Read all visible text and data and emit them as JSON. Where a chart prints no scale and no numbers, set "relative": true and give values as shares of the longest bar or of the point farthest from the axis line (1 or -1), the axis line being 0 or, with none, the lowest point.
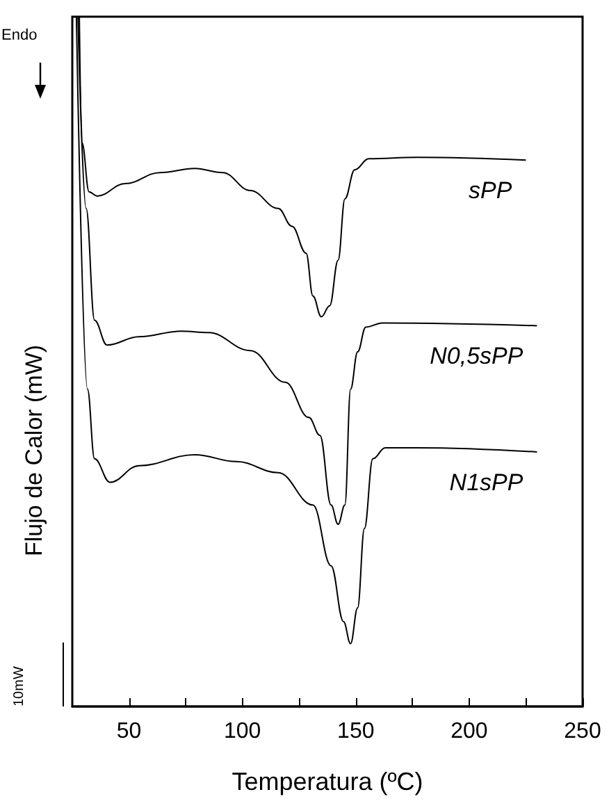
{
  "chart_data": {
    "type": "line",
    "xlabel": "Temperatura (ºC)",
    "ylabel": "Flujo de Calor (mW)",
    "relative": true,
    "legend": false,
    "marker": "none",
    "grid": false,
    "xlim": [
      25,
      250
    ],
    "xticks": [
      50,
      {
        "value": 75,
        "label": null
      },
      100,
      {
        "value": 125,
        "label": null
      },
      150,
      {
        "value": 175,
        "label": null
      },
      200,
      {
        "value": 225,
        "label": null
      },
      250
    ],
    "annotations": [
      "Endo",
      "10mW"
    ],
    "series": [
      {
        "name": "sPP",
        "color": "#000000",
        "x": [
          28.1,
          29.3,
          32.4,
          36.0,
          48.3,
          63.7,
          79.0,
          91.3,
          103.5,
          115.8,
          121.9,
          128.1,
          131.1,
          134.8,
          138.5,
          142.2,
          145.2,
          149.5,
          155.7,
          177.1,
          225.0
        ],
        "values": [
          1.0,
          0.817,
          0.746,
          0.74,
          0.758,
          0.774,
          0.78,
          0.774,
          0.748,
          0.722,
          0.696,
          0.657,
          0.595,
          0.565,
          0.581,
          0.647,
          0.736,
          0.778,
          0.794,
          0.796,
          0.792
        ]
      },
      {
        "name": "N0,5sPP",
        "color": "#000000",
        "x": [
          27.5,
          31.1,
          34.8,
          40.3,
          54.4,
          72.9,
          85.1,
          103.5,
          118.9,
          129.3,
          134.2,
          139.1,
          142.2,
          145.2,
          147.7,
          150.8,
          154.4,
          161.8,
          229.9
        ],
        "values": [
          1.0,
          0.722,
          0.56,
          0.524,
          0.536,
          0.544,
          0.542,
          0.516,
          0.47,
          0.419,
          0.393,
          0.292,
          0.264,
          0.292,
          0.46,
          0.514,
          0.55,
          0.556,
          0.552
        ]
      },
      {
        "name": "N1sPP",
        "color": "#000000",
        "x": [
          26.8,
          31.7,
          34.8,
          41.6,
          54.4,
          79.0,
          97.4,
          115.8,
          131.1,
          139.1,
          144.6,
          147.7,
          150.8,
          153.8,
          157.5,
          163.0,
          177.1,
          229.9
        ],
        "values": [
          1.0,
          0.46,
          0.359,
          0.325,
          0.349,
          0.365,
          0.355,
          0.339,
          0.292,
          0.204,
          0.123,
          0.091,
          0.143,
          0.258,
          0.359,
          0.375,
          0.375,
          0.369
        ]
      }
    ]
  }
}
